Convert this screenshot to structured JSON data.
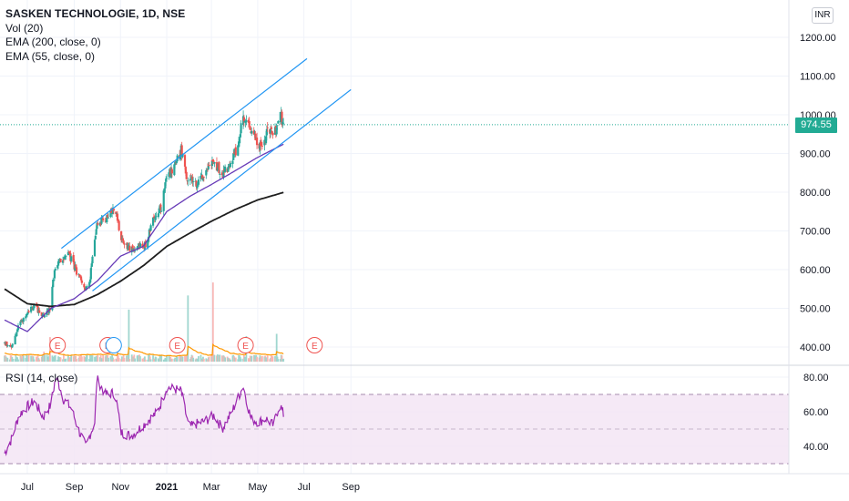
{
  "legend": {
    "title": "SASKEN TECHNOLOGIE, 1D, NSE",
    "volume": "Vol (20)",
    "ema200": "EMA (200, close, 0)",
    "ema55": "EMA (55, close, 0)"
  },
  "rsi_legend": "RSI (14, close)",
  "currency": "INR",
  "last_price": "974.55",
  "colors": {
    "up": "#26a69a",
    "down": "#ef5350",
    "channel": "#2196f3",
    "ema55": "#673ab7",
    "ema200": "#1e1e1e",
    "rsi": "#9c27b0",
    "rsi_band": "#f3e5f5",
    "volume_ma": "#ff9800",
    "earnings": "#ef5350"
  },
  "chart_data": [
    {
      "type": "candlestick",
      "title": "SASKEN TECHNOLOGIE, 1D, NSE",
      "ylim": [
        370,
        1250
      ],
      "price_ticks": [
        "1200.00",
        "1100.00",
        "1000.00",
        "900.00",
        "800.00",
        "700.00",
        "600.00",
        "500.00",
        "400.00"
      ],
      "time_ticks": [
        "Jul",
        "Sep",
        "Nov",
        "2021",
        "Mar",
        "May",
        "Jul",
        "Sep"
      ],
      "last_price": 974.55,
      "close_path": [
        {
          "x": "2020-06-01",
          "y": 410
        },
        {
          "x": "2020-06-10",
          "y": 398
        },
        {
          "x": "2020-06-20",
          "y": 455
        },
        {
          "x": "2020-06-30",
          "y": 490
        },
        {
          "x": "2020-07-10",
          "y": 505
        },
        {
          "x": "2020-07-22",
          "y": 482
        },
        {
          "x": "2020-07-31",
          "y": 500
        },
        {
          "x": "2020-08-06",
          "y": 600
        },
        {
          "x": "2020-08-15",
          "y": 625
        },
        {
          "x": "2020-08-25",
          "y": 640
        },
        {
          "x": "2020-09-05",
          "y": 590
        },
        {
          "x": "2020-09-15",
          "y": 545
        },
        {
          "x": "2020-09-22",
          "y": 580
        },
        {
          "x": "2020-09-30",
          "y": 710
        },
        {
          "x": "2020-10-12",
          "y": 730
        },
        {
          "x": "2020-10-25",
          "y": 755
        },
        {
          "x": "2020-11-02",
          "y": 680
        },
        {
          "x": "2020-11-12",
          "y": 655
        },
        {
          "x": "2020-11-25",
          "y": 660
        },
        {
          "x": "2020-12-05",
          "y": 665
        },
        {
          "x": "2020-12-15",
          "y": 740
        },
        {
          "x": "2020-12-25",
          "y": 760
        },
        {
          "x": "2020-12-31",
          "y": 840
        },
        {
          "x": "2021-01-10",
          "y": 855
        },
        {
          "x": "2021-01-20",
          "y": 910
        },
        {
          "x": "2021-01-28",
          "y": 830
        },
        {
          "x": "2021-02-10",
          "y": 825
        },
        {
          "x": "2021-02-22",
          "y": 860
        },
        {
          "x": "2021-03-05",
          "y": 875
        },
        {
          "x": "2021-03-15",
          "y": 850
        },
        {
          "x": "2021-03-25",
          "y": 865
        },
        {
          "x": "2021-04-05",
          "y": 920
        },
        {
          "x": "2021-04-12",
          "y": 1000
        },
        {
          "x": "2021-04-20",
          "y": 960
        },
        {
          "x": "2021-04-30",
          "y": 930
        },
        {
          "x": "2021-05-08",
          "y": 915
        },
        {
          "x": "2021-05-15",
          "y": 975
        },
        {
          "x": "2021-05-22",
          "y": 940
        },
        {
          "x": "2021-05-30",
          "y": 1000
        },
        {
          "x": "2021-06-05",
          "y": 974.55
        }
      ],
      "ema55": [
        {
          "x": "2020-06-01",
          "y": 470
        },
        {
          "x": "2020-07-01",
          "y": 440
        },
        {
          "x": "2020-08-01",
          "y": 500
        },
        {
          "x": "2020-09-01",
          "y": 525
        },
        {
          "x": "2020-10-01",
          "y": 570
        },
        {
          "x": "2020-11-01",
          "y": 635
        },
        {
          "x": "2020-12-01",
          "y": 660
        },
        {
          "x": "2021-01-01",
          "y": 750
        },
        {
          "x": "2021-02-01",
          "y": 790
        },
        {
          "x": "2021-03-01",
          "y": 820
        },
        {
          "x": "2021-04-01",
          "y": 855
        },
        {
          "x": "2021-05-01",
          "y": 890
        },
        {
          "x": "2021-06-05",
          "y": 925
        }
      ],
      "ema200": [
        {
          "x": "2020-06-01",
          "y": 550
        },
        {
          "x": "2020-07-01",
          "y": 512
        },
        {
          "x": "2020-08-01",
          "y": 505
        },
        {
          "x": "2020-09-01",
          "y": 510
        },
        {
          "x": "2020-10-01",
          "y": 535
        },
        {
          "x": "2020-11-01",
          "y": 570
        },
        {
          "x": "2020-12-01",
          "y": 610
        },
        {
          "x": "2021-01-01",
          "y": 660
        },
        {
          "x": "2021-02-01",
          "y": 695
        },
        {
          "x": "2021-03-01",
          "y": 725
        },
        {
          "x": "2021-04-01",
          "y": 755
        },
        {
          "x": "2021-05-01",
          "y": 780
        },
        {
          "x": "2021-06-05",
          "y": 800
        }
      ],
      "channel_upper": [
        {
          "x": "2020-08-15",
          "y": 655
        },
        {
          "x": "2021-07-05",
          "y": 1145
        }
      ],
      "channel_lower": [
        {
          "x": "2020-09-25",
          "y": 545
        },
        {
          "x": "2021-09-01",
          "y": 1065
        }
      ],
      "earnings_markers": [
        "2020-08-10",
        "2020-10-15",
        "2021-01-15",
        "2021-04-15",
        "2021-07-15"
      ],
      "dividend_marker": "2020-10-23"
    },
    {
      "type": "line",
      "title": "RSI (14, close)",
      "ylim": [
        26,
        86
      ],
      "y_ticks": [
        "80.00",
        "60.00",
        "40.00"
      ],
      "band": [
        30,
        70
      ],
      "middle": 50,
      "series": [
        {
          "name": "RSI (14, close)",
          "points": [
            {
              "x": "2020-06-01",
              "y": 36
            },
            {
              "x": "2020-06-10",
              "y": 44
            },
            {
              "x": "2020-06-20",
              "y": 58
            },
            {
              "x": "2020-07-01",
              "y": 63
            },
            {
              "x": "2020-07-10",
              "y": 66
            },
            {
              "x": "2020-07-22",
              "y": 57
            },
            {
              "x": "2020-08-01",
              "y": 64
            },
            {
              "x": "2020-08-08",
              "y": 81
            },
            {
              "x": "2020-08-18",
              "y": 67
            },
            {
              "x": "2020-08-28",
              "y": 62
            },
            {
              "x": "2020-09-08",
              "y": 48
            },
            {
              "x": "2020-09-16",
              "y": 40
            },
            {
              "x": "2020-09-28",
              "y": 54
            },
            {
              "x": "2020-10-01",
              "y": 79
            },
            {
              "x": "2020-10-12",
              "y": 70
            },
            {
              "x": "2020-10-25",
              "y": 71
            },
            {
              "x": "2020-11-02",
              "y": 48
            },
            {
              "x": "2020-11-15",
              "y": 46
            },
            {
              "x": "2020-11-28",
              "y": 51
            },
            {
              "x": "2020-12-10",
              "y": 56
            },
            {
              "x": "2020-12-20",
              "y": 60
            },
            {
              "x": "2021-01-01",
              "y": 74
            },
            {
              "x": "2021-01-12",
              "y": 73
            },
            {
              "x": "2021-01-20",
              "y": 72
            },
            {
              "x": "2021-01-30",
              "y": 51
            },
            {
              "x": "2021-02-10",
              "y": 53
            },
            {
              "x": "2021-02-22",
              "y": 55
            },
            {
              "x": "2021-03-05",
              "y": 58
            },
            {
              "x": "2021-03-15",
              "y": 50
            },
            {
              "x": "2021-03-28",
              "y": 60
            },
            {
              "x": "2021-04-12",
              "y": 75
            },
            {
              "x": "2021-04-22",
              "y": 56
            },
            {
              "x": "2021-05-02",
              "y": 54
            },
            {
              "x": "2021-05-12",
              "y": 56
            },
            {
              "x": "2021-05-22",
              "y": 52
            },
            {
              "x": "2021-05-30",
              "y": 65
            },
            {
              "x": "2021-06-05",
              "y": 57
            }
          ]
        }
      ]
    }
  ]
}
